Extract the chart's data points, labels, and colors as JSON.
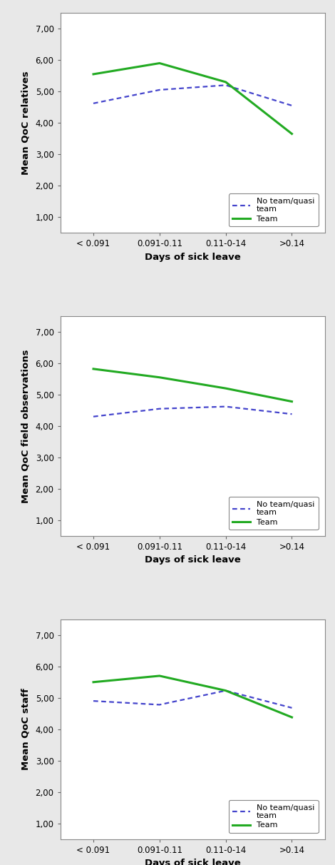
{
  "x_labels": [
    "< 0.091",
    "0.091-0.11",
    "0.11-0-14",
    ">0.14"
  ],
  "x_positions": [
    0,
    1,
    2,
    3
  ],
  "plots": [
    {
      "ylabel": "Mean QoC relatives",
      "no_team": [
        4.62,
        5.05,
        5.2,
        4.55
      ],
      "team": [
        5.55,
        5.9,
        5.3,
        3.65
      ]
    },
    {
      "ylabel": "Mean QoC field observations",
      "no_team": [
        4.3,
        4.55,
        4.62,
        4.38
      ],
      "team": [
        5.82,
        5.55,
        5.2,
        4.78
      ]
    },
    {
      "ylabel": "Mean QoC staff",
      "no_team": [
        4.9,
        4.78,
        5.23,
        4.68
      ],
      "team": [
        5.5,
        5.7,
        5.23,
        4.38
      ]
    }
  ],
  "xlabel": "Days of sick leave",
  "ylim": [
    0.5,
    7.5
  ],
  "yticks": [
    1.0,
    2.0,
    3.0,
    4.0,
    5.0,
    6.0,
    7.0
  ],
  "ytick_labels": [
    "1,00",
    "2,00",
    "3,00",
    "4,00",
    "5,00",
    "6,00",
    "7,00"
  ],
  "legend_no_team": "No team/quasi\nteam",
  "legend_team": "Team",
  "no_team_color": "#4444cc",
  "team_color": "#22aa22",
  "outer_bg_color": "#e8e8e8",
  "plot_bg_color": "#ffffff",
  "border_color": "#999999",
  "team_linewidth": 2.2,
  "no_team_linewidth": 1.6
}
